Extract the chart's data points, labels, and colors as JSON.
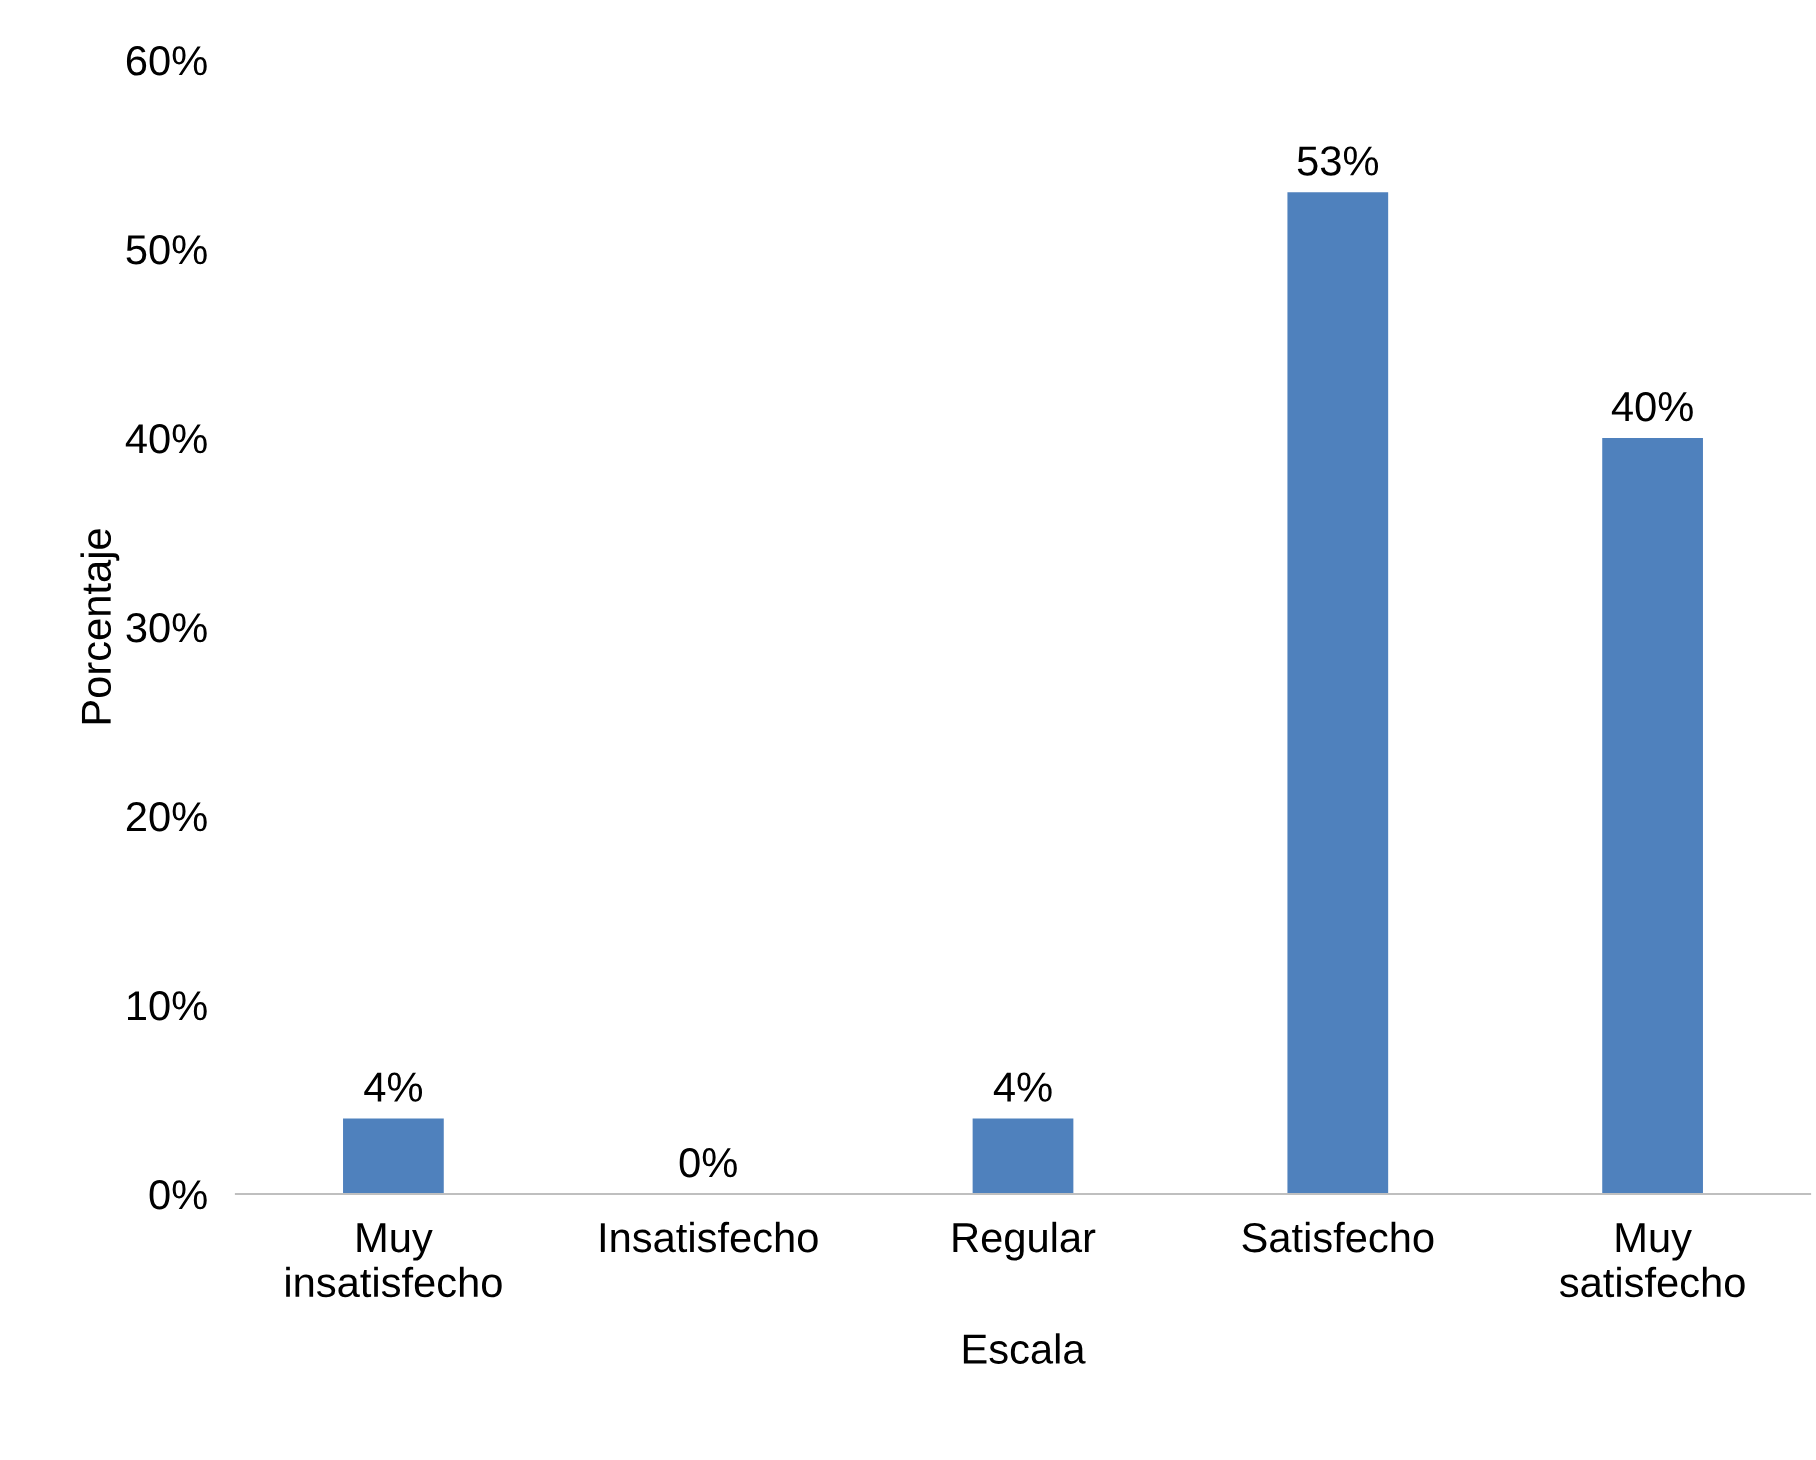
{
  "chart_data": {
    "type": "bar",
    "xlabel": "Escala",
    "ylabel": "Porcentaje",
    "categories": [
      "Muy\ninsatisfecho",
      "Insatisfecho",
      "Regular",
      "Satisfecho",
      "Muy\nsatisfecho"
    ],
    "values": [
      4,
      0,
      4,
      53,
      40
    ],
    "value_labels": [
      "4%",
      "0%",
      "4%",
      "53%",
      "40%"
    ],
    "color": "#4f81bd",
    "ylim": [
      0,
      60
    ],
    "yticks": [
      {
        "value": 0,
        "label": "0%"
      },
      {
        "value": 10,
        "label": "10%"
      },
      {
        "value": 20,
        "label": "20%"
      },
      {
        "value": 30,
        "label": "30%"
      },
      {
        "value": 40,
        "label": "40%"
      },
      {
        "value": 50,
        "label": "50%"
      },
      {
        "value": 60,
        "label": "60%"
      }
    ],
    "grid": false,
    "legend": false
  }
}
